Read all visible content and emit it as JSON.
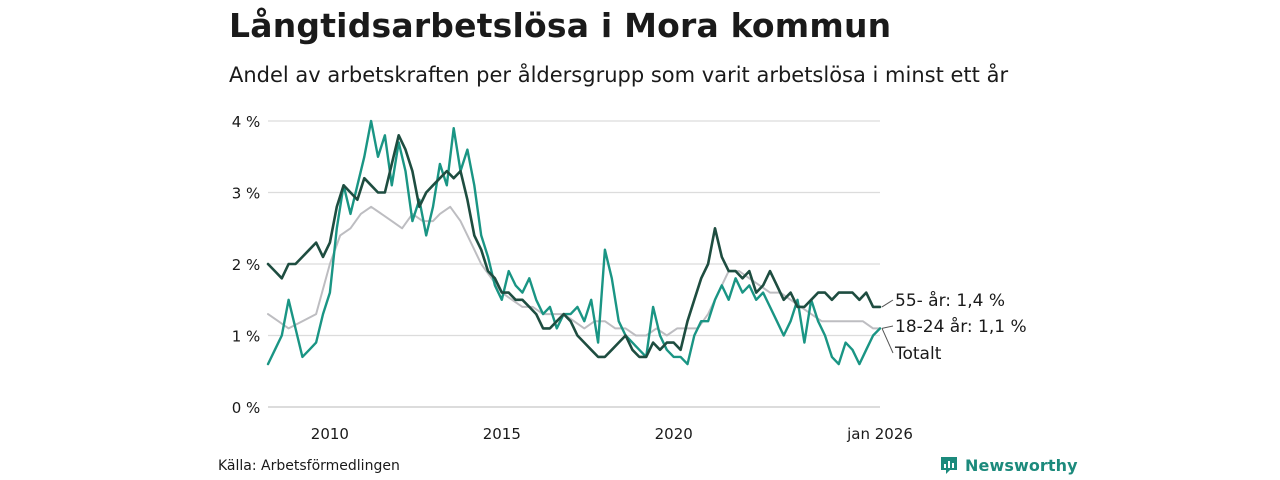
{
  "header": {
    "title": "Långtidsarbetslösa i Mora kommun",
    "subtitle": "Andel av arbetskraften per åldersgrupp som varit arbetslösa i minst ett år"
  },
  "footer": {
    "source": "Källa: Arbetsförmedlingen",
    "brand": "Newsworthy"
  },
  "colors": {
    "s55": "#1e4d40",
    "s1824": "#1a9584",
    "total": "#bdbdc1",
    "grid": "#dcdcdc",
    "brand": "#1c8a7c"
  },
  "chart_data": {
    "type": "line",
    "title": "Långtidsarbetslösa i Mora kommun",
    "subtitle": "Andel av arbetskraften per åldersgrupp som varit arbetslösa i minst ett år",
    "xlabel": "",
    "ylabel": "",
    "xlim": [
      2008.2,
      2026.0
    ],
    "ylim": [
      0,
      4
    ],
    "yticks": [
      {
        "value": 0,
        "label": "0 %"
      },
      {
        "value": 1,
        "label": "1 %"
      },
      {
        "value": 2,
        "label": "2 %"
      },
      {
        "value": 3,
        "label": "3 %"
      },
      {
        "value": 4,
        "label": "4 %"
      }
    ],
    "xticks": [
      {
        "value": 2010,
        "label": "2010"
      },
      {
        "value": 2015,
        "label": "2015"
      },
      {
        "value": 2020,
        "label": "2020"
      },
      {
        "value": 2026.0,
        "label": "jan 2026"
      }
    ],
    "grid": true,
    "series": [
      {
        "key": "total",
        "name": "Totalt",
        "end_label": "Totalt",
        "x": [
          2008.2,
          2008.5,
          2008.8,
          2009.2,
          2009.6,
          2010.0,
          2010.3,
          2010.6,
          2010.9,
          2011.2,
          2011.5,
          2011.8,
          2012.1,
          2012.4,
          2012.7,
          2013.0,
          2013.2,
          2013.5,
          2013.8,
          2014.1,
          2014.4,
          2014.7,
          2015.0,
          2015.3,
          2015.6,
          2015.9,
          2016.2,
          2016.5,
          2016.8,
          2017.1,
          2017.4,
          2017.7,
          2018.0,
          2018.3,
          2018.6,
          2018.9,
          2019.2,
          2019.5,
          2019.8,
          2020.1,
          2020.4,
          2020.7,
          2021.0,
          2021.3,
          2021.6,
          2021.9,
          2022.2,
          2022.5,
          2022.8,
          2023.1,
          2023.4,
          2023.7,
          2024.0,
          2024.3,
          2024.6,
          2024.9,
          2025.2,
          2025.5,
          2025.8,
          2026.0
        ],
        "values": [
          1.3,
          1.2,
          1.1,
          1.2,
          1.3,
          2.0,
          2.4,
          2.5,
          2.7,
          2.8,
          2.7,
          2.6,
          2.5,
          2.7,
          2.6,
          2.6,
          2.7,
          2.8,
          2.6,
          2.3,
          2.0,
          1.8,
          1.6,
          1.5,
          1.4,
          1.4,
          1.3,
          1.3,
          1.3,
          1.2,
          1.1,
          1.2,
          1.2,
          1.1,
          1.1,
          1.0,
          1.0,
          1.1,
          1.0,
          1.1,
          1.1,
          1.1,
          1.3,
          1.6,
          1.9,
          1.9,
          1.8,
          1.7,
          1.6,
          1.6,
          1.5,
          1.4,
          1.3,
          1.2,
          1.2,
          1.2,
          1.2,
          1.2,
          1.1,
          1.1
        ]
      },
      {
        "key": "s1824",
        "name": "18-24 år",
        "end_label": "18-24 år: 1,1 %",
        "x": [
          2008.2,
          2008.4,
          2008.6,
          2008.8,
          2009.0,
          2009.2,
          2009.4,
          2009.6,
          2009.8,
          2010.0,
          2010.2,
          2010.4,
          2010.6,
          2010.8,
          2011.0,
          2011.2,
          2011.4,
          2011.6,
          2011.8,
          2012.0,
          2012.2,
          2012.4,
          2012.6,
          2012.8,
          2013.0,
          2013.2,
          2013.4,
          2013.6,
          2013.8,
          2014.0,
          2014.2,
          2014.4,
          2014.6,
          2014.8,
          2015.0,
          2015.2,
          2015.4,
          2015.6,
          2015.8,
          2016.0,
          2016.2,
          2016.4,
          2016.6,
          2016.8,
          2017.0,
          2017.2,
          2017.4,
          2017.6,
          2017.8,
          2018.0,
          2018.2,
          2018.4,
          2018.6,
          2018.8,
          2019.0,
          2019.2,
          2019.4,
          2019.6,
          2019.8,
          2020.0,
          2020.2,
          2020.4,
          2020.6,
          2020.8,
          2021.0,
          2021.2,
          2021.4,
          2021.6,
          2021.8,
          2022.0,
          2022.2,
          2022.4,
          2022.6,
          2022.8,
          2023.0,
          2023.2,
          2023.4,
          2023.6,
          2023.8,
          2024.0,
          2024.2,
          2024.4,
          2024.6,
          2024.8,
          2025.0,
          2025.2,
          2025.4,
          2025.6,
          2025.8,
          2026.0
        ],
        "values": [
          0.6,
          0.8,
          1.0,
          1.5,
          1.1,
          0.7,
          0.8,
          0.9,
          1.3,
          1.6,
          2.5,
          3.1,
          2.7,
          3.1,
          3.5,
          4.0,
          3.5,
          3.8,
          3.1,
          3.7,
          3.3,
          2.6,
          2.9,
          2.4,
          2.8,
          3.4,
          3.1,
          3.9,
          3.3,
          3.6,
          3.1,
          2.4,
          2.1,
          1.7,
          1.5,
          1.9,
          1.7,
          1.6,
          1.8,
          1.5,
          1.3,
          1.4,
          1.1,
          1.3,
          1.3,
          1.4,
          1.2,
          1.5,
          0.9,
          2.2,
          1.8,
          1.2,
          1.0,
          0.9,
          0.8,
          0.7,
          1.4,
          1.0,
          0.8,
          0.7,
          0.7,
          0.6,
          1.0,
          1.2,
          1.2,
          1.5,
          1.7,
          1.5,
          1.8,
          1.6,
          1.7,
          1.5,
          1.6,
          1.4,
          1.2,
          1.0,
          1.2,
          1.5,
          0.9,
          1.5,
          1.2,
          1.0,
          0.7,
          0.6,
          0.9,
          0.8,
          0.6,
          0.8,
          1.0,
          1.1
        ]
      },
      {
        "key": "s55",
        "name": "55- år",
        "end_label": "55- år: 1,4 %",
        "x": [
          2008.2,
          2008.4,
          2008.6,
          2008.8,
          2009.0,
          2009.2,
          2009.4,
          2009.6,
          2009.8,
          2010.0,
          2010.2,
          2010.4,
          2010.6,
          2010.8,
          2011.0,
          2011.2,
          2011.4,
          2011.6,
          2011.8,
          2012.0,
          2012.2,
          2012.4,
          2012.6,
          2012.8,
          2013.0,
          2013.2,
          2013.4,
          2013.6,
          2013.8,
          2014.0,
          2014.2,
          2014.4,
          2014.6,
          2014.8,
          2015.0,
          2015.2,
          2015.4,
          2015.6,
          2015.8,
          2016.0,
          2016.2,
          2016.4,
          2016.6,
          2016.8,
          2017.0,
          2017.2,
          2017.4,
          2017.6,
          2017.8,
          2018.0,
          2018.2,
          2018.4,
          2018.6,
          2018.8,
          2019.0,
          2019.2,
          2019.4,
          2019.6,
          2019.8,
          2020.0,
          2020.2,
          2020.4,
          2020.6,
          2020.8,
          2021.0,
          2021.2,
          2021.4,
          2021.6,
          2021.8,
          2022.0,
          2022.2,
          2022.4,
          2022.6,
          2022.8,
          2023.0,
          2023.2,
          2023.4,
          2023.6,
          2023.8,
          2024.0,
          2024.2,
          2024.4,
          2024.6,
          2024.8,
          2025.0,
          2025.2,
          2025.4,
          2025.6,
          2025.8,
          2026.0
        ],
        "values": [
          2.0,
          1.9,
          1.8,
          2.0,
          2.0,
          2.1,
          2.2,
          2.3,
          2.1,
          2.3,
          2.8,
          3.1,
          3.0,
          2.9,
          3.2,
          3.1,
          3.0,
          3.0,
          3.4,
          3.8,
          3.6,
          3.3,
          2.8,
          3.0,
          3.1,
          3.2,
          3.3,
          3.2,
          3.3,
          2.9,
          2.4,
          2.2,
          1.9,
          1.8,
          1.6,
          1.6,
          1.5,
          1.5,
          1.4,
          1.3,
          1.1,
          1.1,
          1.2,
          1.3,
          1.2,
          1.0,
          0.9,
          0.8,
          0.7,
          0.7,
          0.8,
          0.9,
          1.0,
          0.8,
          0.7,
          0.7,
          0.9,
          0.8,
          0.9,
          0.9,
          0.8,
          1.2,
          1.5,
          1.8,
          2.0,
          2.5,
          2.1,
          1.9,
          1.9,
          1.8,
          1.9,
          1.6,
          1.7,
          1.9,
          1.7,
          1.5,
          1.6,
          1.4,
          1.4,
          1.5,
          1.6,
          1.6,
          1.5,
          1.6,
          1.6,
          1.6,
          1.5,
          1.6,
          1.4,
          1.4
        ]
      }
    ]
  }
}
